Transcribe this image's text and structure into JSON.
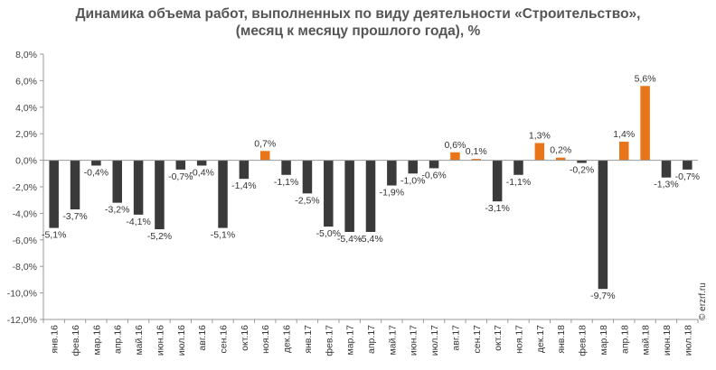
{
  "chart_data": {
    "type": "bar",
    "title": "Динамика объема работ, выполненных по виду деятельности «Строительство»,",
    "subtitle": "(месяц к месяцу прошлого года), %",
    "xlabel": "",
    "ylabel": "",
    "ylim": [
      -12,
      8
    ],
    "yticks": [
      8,
      6,
      4,
      2,
      0,
      -2,
      -4,
      -6,
      -8,
      -10,
      -12
    ],
    "ytick_labels": [
      "8,0%",
      "6,0%",
      "4,0%",
      "2,0%",
      "0,0%",
      "-2,0%",
      "-4,0%",
      "-6,0%",
      "-8,0%",
      "-10,0%",
      "-12,0%"
    ],
    "grid": false,
    "legend": "none",
    "categories": [
      "янв.16",
      "фев.16",
      "мар.16",
      "апр.16",
      "май.16",
      "июн.16",
      "июл.16",
      "авг.16",
      "сен.16",
      "окт.16",
      "ноя.16",
      "дек.16",
      "янв.17",
      "фев.17",
      "мар.17",
      "апр.17",
      "май.17",
      "июн.17",
      "июл.17",
      "авг.17",
      "сен.17",
      "окт.17",
      "ноя.17",
      "дек.17",
      "янв.18",
      "фев.18",
      "мар.18",
      "апр.18",
      "май.18",
      "июн.18",
      "июл.18"
    ],
    "values": [
      -5.1,
      -3.7,
      -0.4,
      -3.2,
      -4.1,
      -5.2,
      -0.7,
      -0.4,
      -5.1,
      -1.4,
      0.7,
      -1.1,
      -2.5,
      -5.0,
      -5.4,
      -5.4,
      -1.9,
      -1.0,
      -0.6,
      0.6,
      0.1,
      -3.1,
      -1.1,
      1.3,
      0.2,
      -0.2,
      -9.7,
      1.4,
      5.6,
      -1.3,
      -0.7
    ],
    "value_labels": [
      "-5,1%",
      "-3,7%",
      "-0,4%",
      "-3,2%",
      "-4,1%",
      "-5,2%",
      "-0,7%",
      "-0,4%",
      "-5,1%",
      "-1,4%",
      "0,7%",
      "-1,1%",
      "-2,5%",
      "-5,0%",
      "-5,4%",
      "-5,4%",
      "-1,9%",
      "-1,0%",
      "-0,6%",
      "0,6%",
      "0,1%",
      "-3,1%",
      "-1,1%",
      "1,3%",
      "0,2%",
      "-0,2%",
      "-9,7%",
      "1,4%",
      "5,6%",
      "-1,3%",
      "-0,7%"
    ],
    "colors": {
      "positive": "#e8751a",
      "negative": "#3a3a3a",
      "axis": "#999999"
    }
  },
  "credit": "© erzrf.ru"
}
